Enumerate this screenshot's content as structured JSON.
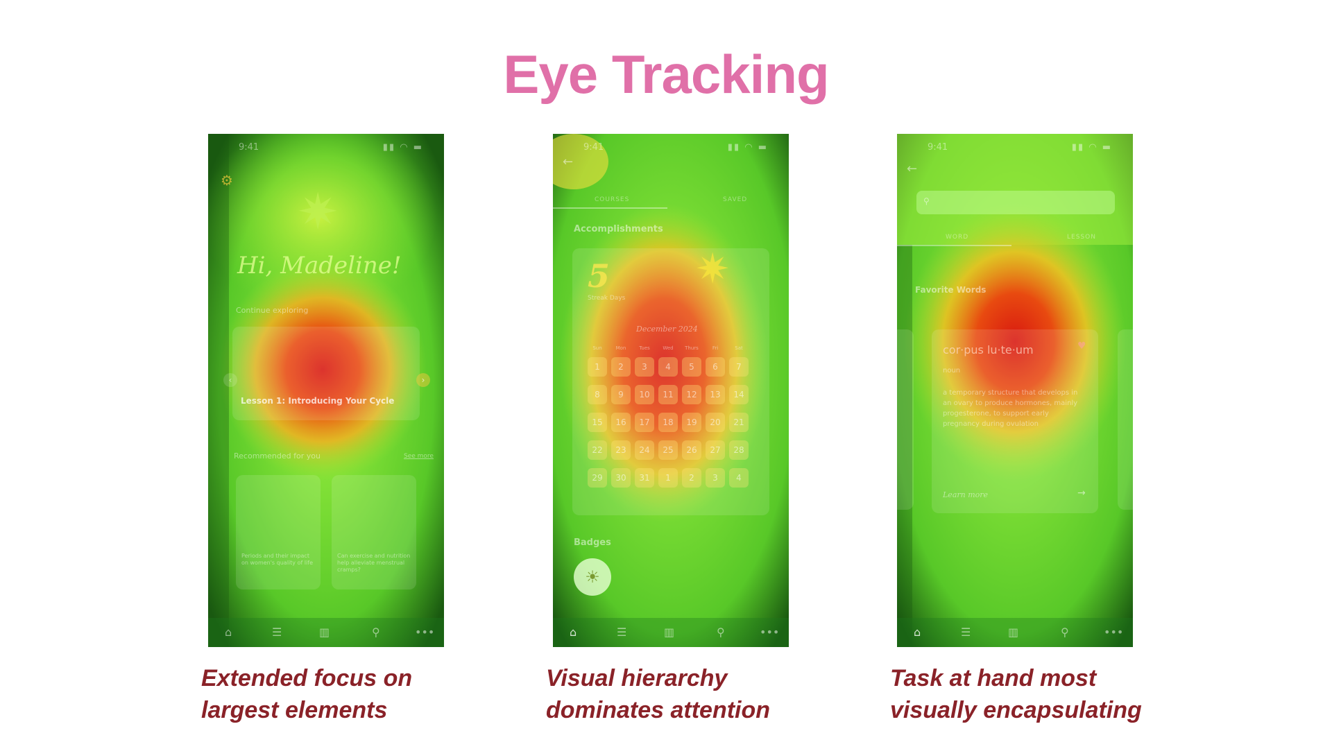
{
  "title": "Eye Tracking",
  "panels": [
    {
      "status_time": "9:41",
      "greeting": "Hi, Madeline!",
      "continue_label": "Continue exploring",
      "lesson_title": "Lesson 1: Introducing Your Cycle",
      "recommended_label": "Recommended for you",
      "see_more": "See more",
      "card1_text": "Periods and their impact on women's quality of life",
      "card2_text": "Can exercise and nutrition help alleviate menstrual cramps?",
      "caption_line1": "Extended focus on",
      "caption_line2": "largest elements"
    },
    {
      "status_time": "9:41",
      "tab_courses": "COURSES",
      "tab_saved": "SAVED",
      "accomplishments_label": "Accomplishments",
      "streak_number": "5",
      "streak_label": "Streak Days",
      "month_label": "December 2024",
      "weekdays": [
        "Sun",
        "Mon",
        "Tues",
        "Wed",
        "Thurs",
        "Fri",
        "Sat"
      ],
      "calendar_rows": [
        [
          "1",
          "2",
          "3",
          "4",
          "5",
          "6",
          "7"
        ],
        [
          "8",
          "9",
          "10",
          "11",
          "12",
          "13",
          "14"
        ],
        [
          "15",
          "16",
          "17",
          "18",
          "19",
          "20",
          "21"
        ],
        [
          "22",
          "23",
          "24",
          "25",
          "26",
          "27",
          "28"
        ],
        [
          "29",
          "30",
          "31",
          "1",
          "2",
          "3",
          "4"
        ]
      ],
      "badges_label": "Badges",
      "caption_line1": "Visual hierarchy",
      "caption_line2": "dominates attention"
    },
    {
      "status_time": "9:41",
      "tab_word": "WORD",
      "tab_lesson": "LESSON",
      "favorite_label": "Favorite Words",
      "word": "cor·pus lu·te·um",
      "word_type": "noun",
      "definition": "a temporary structure that develops in an ovary to produce hormones, mainly progesterone, to support early pregnancy during ovulation",
      "learn_more": "Learn more",
      "caption_line1": "Task at hand most",
      "caption_line2": "visually encapsulating"
    }
  ],
  "colors": {
    "title": "#e070a8",
    "caption": "#8a2228",
    "heat_hot": "#e02010",
    "heat_warm": "#f0c020",
    "heat_cool": "#70e030",
    "heat_edge": "#1a5a10"
  }
}
